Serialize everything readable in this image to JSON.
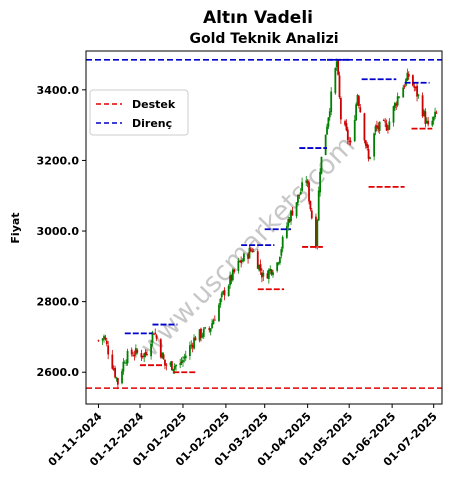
{
  "chart_data": {
    "type": "candlestick",
    "suptitle": "Altın Vadeli",
    "title": "Gold Teknik Analizi",
    "xlabel": "",
    "ylabel": "Fiyat",
    "ylim": [
      2510,
      3510
    ],
    "xlim": [
      "2024-10-23",
      "2025-07-07"
    ],
    "y_ticks": [
      2600,
      2800,
      3000,
      3200,
      3400
    ],
    "y_tick_labels": [
      "2600.0",
      "2800.0",
      "3000.0",
      "3200.0",
      "3400.0"
    ],
    "x_ticks": [
      "2024-11-01",
      "2024-12-01",
      "2025-01-01",
      "2025-02-01",
      "2025-03-01",
      "2025-04-01",
      "2025-05-01",
      "2025-06-01",
      "2025-07-01"
    ],
    "x_tick_labels": [
      "01-11-2024",
      "01-12-2024",
      "01-01-2025",
      "01-02-2025",
      "01-03-2025",
      "01-04-2025",
      "01-05-2025",
      "01-06-2025",
      "01-07-2025"
    ],
    "watermark": "www.uscmarkets.com",
    "legend": {
      "placement": "upper-left",
      "entries": [
        {
          "label": "Destek",
          "color": "#e00000",
          "style": "dashed"
        },
        {
          "label": "Direnç",
          "color": "#0000cc",
          "style": "dashed"
        }
      ]
    },
    "global_support": 2555,
    "global_resistance": 3485,
    "up_color": "#008000",
    "down_color": "#cc0000",
    "support_levels": [
      {
        "from": "2024-12-01",
        "to": "2024-12-18",
        "value": 2620
      },
      {
        "from": "2024-12-25",
        "to": "2025-01-10",
        "value": 2600
      },
      {
        "from": "2025-02-24",
        "to": "2025-03-15",
        "value": 2835
      },
      {
        "from": "2025-03-28",
        "to": "2025-04-12",
        "value": 2955
      },
      {
        "from": "2025-05-15",
        "to": "2025-06-10",
        "value": 3125
      },
      {
        "from": "2025-06-15",
        "to": "2025-06-30",
        "value": 3290
      }
    ],
    "resistance_levels": [
      {
        "from": "2024-11-20",
        "to": "2024-12-10",
        "value": 2710
      },
      {
        "from": "2024-12-10",
        "to": "2024-12-28",
        "value": 2735
      },
      {
        "from": "2025-02-12",
        "to": "2025-03-08",
        "value": 2960
      },
      {
        "from": "2025-03-01",
        "to": "2025-03-20",
        "value": 3005
      },
      {
        "from": "2025-03-26",
        "to": "2025-04-15",
        "value": 3235
      },
      {
        "from": "2025-04-15",
        "to": "2025-05-01",
        "value": 3485
      },
      {
        "from": "2025-05-10",
        "to": "2025-06-04",
        "value": 3430
      },
      {
        "from": "2025-06-10",
        "to": "2025-06-28",
        "value": 3420
      }
    ],
    "ohlc_anchors": [
      [
        "2024-11-01",
        2690
      ],
      [
        "2024-11-05",
        2700
      ],
      [
        "2024-11-12",
        2610
      ],
      [
        "2024-11-15",
        2570
      ],
      [
        "2024-11-20",
        2640
      ],
      [
        "2024-11-26",
        2655
      ],
      [
        "2024-12-05",
        2650
      ],
      [
        "2024-12-11",
        2720
      ],
      [
        "2024-12-19",
        2620
      ],
      [
        "2024-12-30",
        2620
      ],
      [
        "2025-01-10",
        2700
      ],
      [
        "2025-01-20",
        2720
      ],
      [
        "2025-01-31",
        2830
      ],
      [
        "2025-02-10",
        2905
      ],
      [
        "2025-02-20",
        2950
      ],
      [
        "2025-02-28",
        2870
      ],
      [
        "2025-03-10",
        2910
      ],
      [
        "2025-03-18",
        3030
      ],
      [
        "2025-03-31",
        3150
      ],
      [
        "2025-04-04",
        3040
      ],
      [
        "2025-04-07",
        2970
      ],
      [
        "2025-04-10",
        3180
      ],
      [
        "2025-04-16",
        3330
      ],
      [
        "2025-04-22",
        3480
      ],
      [
        "2025-04-25",
        3320
      ],
      [
        "2025-05-02",
        3240
      ],
      [
        "2025-05-07",
        3390
      ],
      [
        "2025-05-15",
        3200
      ],
      [
        "2025-05-20",
        3290
      ],
      [
        "2025-05-29",
        3300
      ],
      [
        "2025-06-05",
        3380
      ],
      [
        "2025-06-13",
        3440
      ],
      [
        "2025-06-20",
        3380
      ],
      [
        "2025-06-27",
        3290
      ],
      [
        "2025-07-03",
        3330
      ]
    ]
  }
}
